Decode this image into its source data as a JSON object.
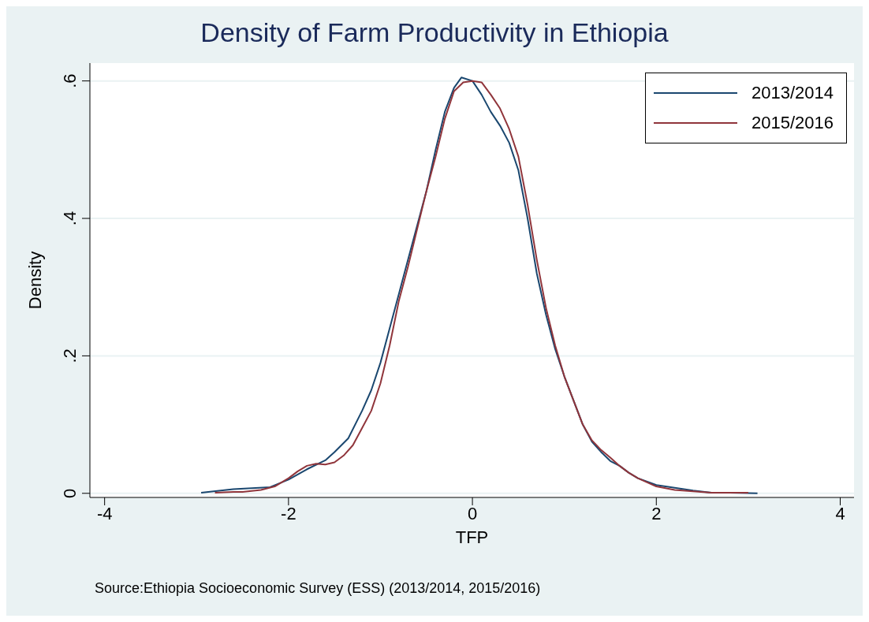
{
  "chart_data": {
    "type": "line",
    "title": "Density of Farm Productivity in Ethiopia",
    "xlabel": "TFP",
    "ylabel": "Density",
    "annotations": [
      "Source:Ethiopia Socioeconomic Survey (ESS) (2013/2014, 2015/2016)"
    ],
    "xlim": [
      -4.16,
      4.15
    ],
    "xticks": [
      -4,
      -2,
      0,
      2,
      4
    ],
    "ylim": [
      -0.006,
      0.626
    ],
    "yticks": [
      {
        "value": 0,
        "label": "0"
      },
      {
        "value": 0.2,
        "label": ".2"
      },
      {
        "value": 0.4,
        "label": ".4"
      },
      {
        "value": 0.6,
        "label": ".6"
      }
    ],
    "grid": "y",
    "legend": "top right",
    "marker": "none",
    "line_style": "solid",
    "series": [
      {
        "name": "2013/2014",
        "color": "#1a476f",
        "x": [
          -2.95,
          -2.6,
          -2.2,
          -2.0,
          -1.8,
          -1.6,
          -1.5,
          -1.35,
          -1.2,
          -1.1,
          -1.0,
          -0.9,
          -0.8,
          -0.7,
          -0.6,
          -0.5,
          -0.4,
          -0.3,
          -0.2,
          -0.12,
          0.0,
          0.1,
          0.2,
          0.3,
          0.4,
          0.5,
          0.6,
          0.7,
          0.8,
          0.9,
          1.0,
          1.1,
          1.2,
          1.3,
          1.4,
          1.5,
          1.6,
          1.7,
          1.8,
          2.0,
          2.2,
          2.4,
          2.6,
          2.8,
          3.1
        ],
        "values": [
          0.001,
          0.006,
          0.009,
          0.02,
          0.035,
          0.048,
          0.06,
          0.08,
          0.12,
          0.15,
          0.19,
          0.24,
          0.29,
          0.34,
          0.39,
          0.44,
          0.5,
          0.555,
          0.59,
          0.605,
          0.6,
          0.58,
          0.555,
          0.535,
          0.51,
          0.47,
          0.4,
          0.32,
          0.26,
          0.21,
          0.17,
          0.135,
          0.1,
          0.075,
          0.06,
          0.047,
          0.04,
          0.03,
          0.022,
          0.012,
          0.008,
          0.004,
          0.001,
          0.001,
          0.0
        ]
      },
      {
        "name": "2015/2016",
        "color": "#90353b",
        "x": [
          -2.8,
          -2.6,
          -2.5,
          -2.3,
          -2.15,
          -2.0,
          -1.9,
          -1.8,
          -1.7,
          -1.6,
          -1.5,
          -1.4,
          -1.3,
          -1.2,
          -1.1,
          -1.0,
          -0.9,
          -0.8,
          -0.7,
          -0.6,
          -0.5,
          -0.4,
          -0.3,
          -0.2,
          -0.1,
          0.0,
          0.1,
          0.2,
          0.3,
          0.4,
          0.5,
          0.6,
          0.7,
          0.8,
          0.9,
          1.0,
          1.1,
          1.2,
          1.3,
          1.4,
          1.5,
          1.6,
          1.7,
          1.8,
          2.0,
          2.2,
          2.4,
          2.6,
          2.8,
          3.0
        ],
        "values": [
          0.001,
          0.002,
          0.002,
          0.005,
          0.01,
          0.022,
          0.032,
          0.04,
          0.043,
          0.042,
          0.045,
          0.055,
          0.07,
          0.095,
          0.12,
          0.16,
          0.215,
          0.28,
          0.33,
          0.385,
          0.44,
          0.49,
          0.545,
          0.585,
          0.598,
          0.6,
          0.598,
          0.58,
          0.56,
          0.53,
          0.49,
          0.42,
          0.34,
          0.27,
          0.215,
          0.17,
          0.135,
          0.1,
          0.077,
          0.063,
          0.052,
          0.04,
          0.03,
          0.022,
          0.01,
          0.005,
          0.003,
          0.001,
          0.001,
          0.001
        ]
      }
    ]
  }
}
